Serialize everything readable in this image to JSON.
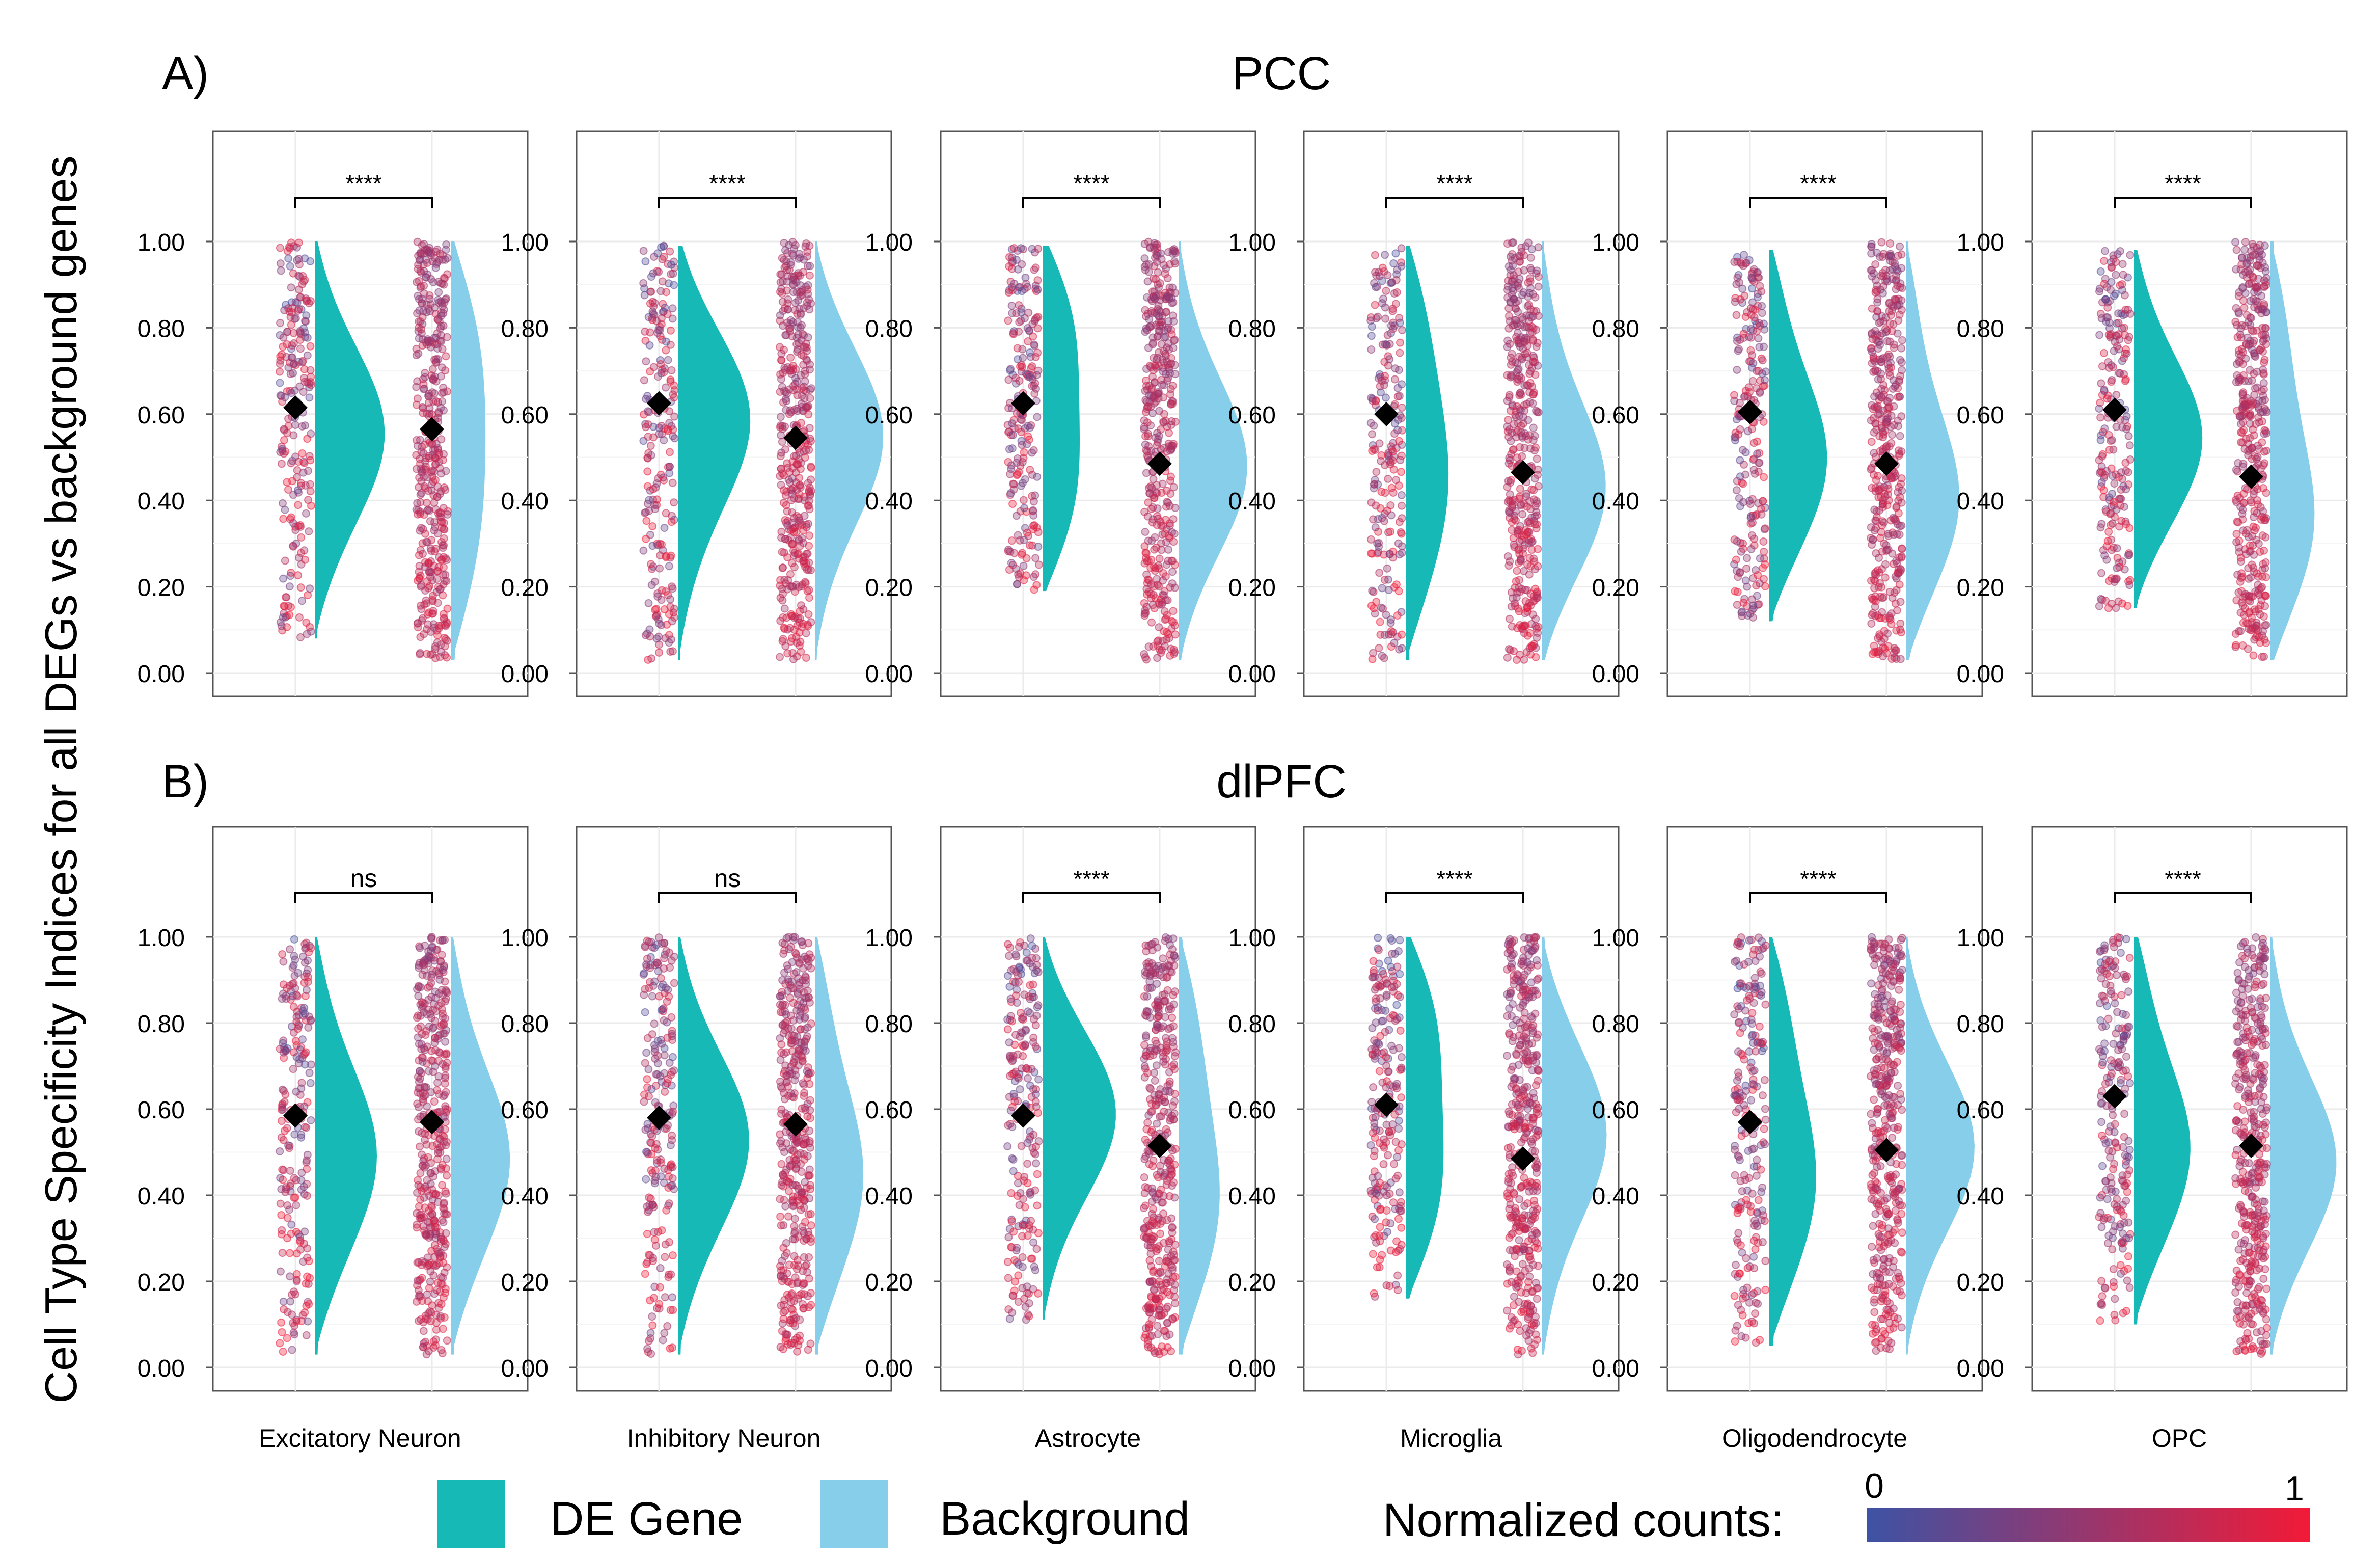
{
  "ylabel": "Cell Type Specificity Indices for all DEGs vs background genes",
  "y_ticks": [
    "0.00",
    "0.20",
    "0.40",
    "0.60",
    "0.80",
    "1.00"
  ],
  "cell_types": [
    "Excitatory Neuron",
    "Inhibitory Neuron",
    "Astrocyte",
    "Microglia",
    "Oligodendrocyte",
    "OPC"
  ],
  "legend": {
    "de_gene_label": "DE Gene",
    "background_label": "Background",
    "normalized_counts_label": "Normalized counts:",
    "gradient_min_label": "0",
    "gradient_max_label": "1"
  },
  "colors": {
    "de_gene": "#16b9b6",
    "background": "#87ceeb",
    "gradient_low": "#3d53a4",
    "gradient_high": "#f21a37",
    "mean_marker": "#000000"
  },
  "chart_data": [
    {
      "type": "raincloud",
      "panel_label": "A)",
      "title": "PCC",
      "ylim": [
        0,
        1.1
      ],
      "categories": [
        "Excitatory Neuron",
        "Inhibitory Neuron",
        "Astrocyte",
        "Microglia",
        "Oligodendrocyte",
        "OPC"
      ],
      "series": [
        {
          "name": "DE Gene",
          "means": [
            0.615,
            0.625,
            0.625,
            0.6,
            0.605,
            0.61
          ],
          "ranges": [
            [
              0.08,
              1.0
            ],
            [
              0.03,
              0.99
            ],
            [
              0.19,
              0.99
            ],
            [
              0.03,
              0.99
            ],
            [
              0.12,
              0.98
            ],
            [
              0.15,
              0.98
            ]
          ]
        },
        {
          "name": "Background",
          "means": [
            0.565,
            0.545,
            0.485,
            0.465,
            0.485,
            0.455
          ],
          "ranges": [
            [
              0.03,
              1.0
            ],
            [
              0.03,
              1.0
            ],
            [
              0.03,
              1.0
            ],
            [
              0.03,
              1.0
            ],
            [
              0.03,
              1.0
            ],
            [
              0.03,
              1.0
            ]
          ]
        }
      ],
      "significance": [
        "****",
        "****",
        "****",
        "****",
        "****",
        "****"
      ]
    },
    {
      "type": "raincloud",
      "panel_label": "B)",
      "title": "dlPFC",
      "ylim": [
        0,
        1.1
      ],
      "categories": [
        "Excitatory Neuron",
        "Inhibitory Neuron",
        "Astrocyte",
        "Microglia",
        "Oligodendrocyte",
        "OPC"
      ],
      "series": [
        {
          "name": "DE Gene",
          "means": [
            0.585,
            0.58,
            0.585,
            0.61,
            0.57,
            0.63
          ],
          "ranges": [
            [
              0.03,
              1.0
            ],
            [
              0.03,
              1.0
            ],
            [
              0.11,
              1.0
            ],
            [
              0.16,
              1.0
            ],
            [
              0.05,
              1.0
            ],
            [
              0.1,
              1.0
            ]
          ]
        },
        {
          "name": "Background",
          "means": [
            0.57,
            0.565,
            0.515,
            0.485,
            0.505,
            0.515
          ],
          "ranges": [
            [
              0.03,
              1.0
            ],
            [
              0.03,
              1.0
            ],
            [
              0.03,
              1.0
            ],
            [
              0.03,
              1.0
            ],
            [
              0.03,
              1.0
            ],
            [
              0.03,
              1.0
            ]
          ]
        }
      ],
      "significance": [
        "ns",
        "ns",
        "****",
        "****",
        "****",
        "****"
      ]
    }
  ]
}
